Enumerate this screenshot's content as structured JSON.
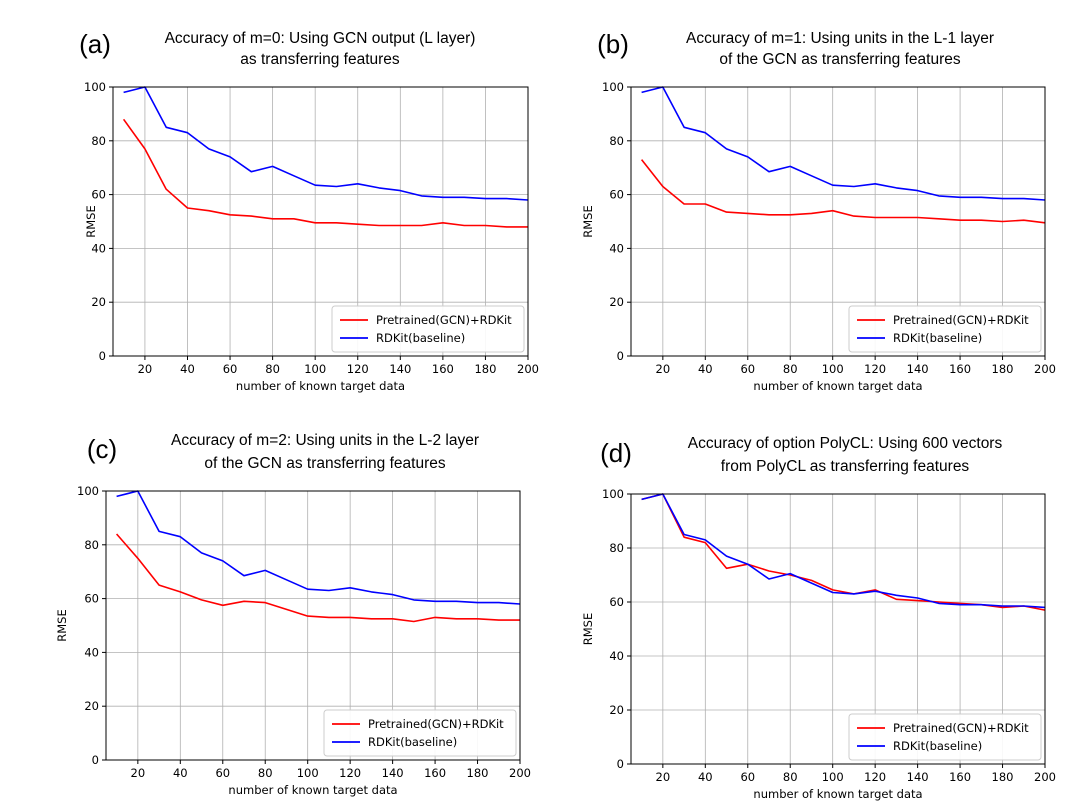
{
  "chart_data": [
    {
      "type": "line",
      "panel_label": "(a)",
      "title_lines": [
        "Accuracy of m=0: Using GCN output (L layer)",
        "as transferring features"
      ],
      "xlabel": "number of known target data",
      "ylabel": "RMSE",
      "xlim": [
        5,
        200
      ],
      "ylim": [
        0,
        100
      ],
      "xticks": [
        20,
        40,
        60,
        80,
        100,
        120,
        140,
        160,
        180,
        200
      ],
      "yticks": [
        0,
        20,
        40,
        60,
        80,
        100
      ],
      "grid": true,
      "legend_position": "lower right",
      "x": [
        10,
        20,
        30,
        40,
        50,
        60,
        70,
        80,
        90,
        100,
        110,
        120,
        130,
        140,
        150,
        160,
        170,
        180,
        190,
        200
      ],
      "series": [
        {
          "name": "Pretrained(GCN)+RDKit",
          "color": "#ff0000",
          "values": [
            88,
            77,
            62,
            55,
            54,
            52.5,
            52,
            51,
            51,
            49.5,
            49.5,
            49,
            48.5,
            48.5,
            48.5,
            49.5,
            48.5,
            48.5,
            48,
            48
          ]
        },
        {
          "name": "RDKit(baseline)",
          "color": "#0000ff",
          "values": [
            98,
            100,
            85,
            83,
            77,
            74,
            68.5,
            70.5,
            67,
            63.5,
            63,
            64,
            62.5,
            61.5,
            59.5,
            59,
            59,
            58.5,
            58.5,
            58
          ]
        }
      ]
    },
    {
      "type": "line",
      "panel_label": "(b)",
      "title_lines": [
        "Accuracy of m=1: Using units in the L-1 layer",
        "of the GCN as transferring features"
      ],
      "xlabel": "number of known target data",
      "ylabel": "RMSE",
      "xlim": [
        5,
        200
      ],
      "ylim": [
        0,
        100
      ],
      "xticks": [
        20,
        40,
        60,
        80,
        100,
        120,
        140,
        160,
        180,
        200
      ],
      "yticks": [
        0,
        20,
        40,
        60,
        80,
        100
      ],
      "grid": true,
      "legend_position": "lower right",
      "x": [
        10,
        20,
        30,
        40,
        50,
        60,
        70,
        80,
        90,
        100,
        110,
        120,
        130,
        140,
        150,
        160,
        170,
        180,
        190,
        200
      ],
      "series": [
        {
          "name": "Pretrained(GCN)+RDKit",
          "color": "#ff0000",
          "values": [
            73,
            63,
            56.5,
            56.5,
            53.5,
            53,
            52.5,
            52.5,
            53,
            54,
            52,
            51.5,
            51.5,
            51.5,
            51,
            50.5,
            50.5,
            50,
            50.5,
            49.5
          ]
        },
        {
          "name": "RDKit(baseline)",
          "color": "#0000ff",
          "values": [
            98,
            100,
            85,
            83,
            77,
            74,
            68.5,
            70.5,
            67,
            63.5,
            63,
            64,
            62.5,
            61.5,
            59.5,
            59,
            59,
            58.5,
            58.5,
            58
          ]
        }
      ]
    },
    {
      "type": "line",
      "panel_label": "(c)",
      "title_lines": [
        "Accuracy of m=2: Using units in the L-2 layer",
        "of the GCN as transferring features"
      ],
      "xlabel": "number of known target data",
      "ylabel": "RMSE",
      "xlim": [
        5,
        200
      ],
      "ylim": [
        0,
        100
      ],
      "xticks": [
        20,
        40,
        60,
        80,
        100,
        120,
        140,
        160,
        180,
        200
      ],
      "yticks": [
        0,
        20,
        40,
        60,
        80,
        100
      ],
      "grid": true,
      "legend_position": "lower right",
      "x": [
        10,
        20,
        30,
        40,
        50,
        60,
        70,
        80,
        90,
        100,
        110,
        120,
        130,
        140,
        150,
        160,
        170,
        180,
        190,
        200
      ],
      "series": [
        {
          "name": "Pretrained(GCN)+RDKit",
          "color": "#ff0000",
          "values": [
            84,
            75,
            65,
            62.5,
            59.5,
            57.5,
            59,
            58.5,
            56,
            53.5,
            53,
            53,
            52.5,
            52.5,
            51.5,
            53,
            52.5,
            52.5,
            52,
            52
          ]
        },
        {
          "name": "RDKit(baseline)",
          "color": "#0000ff",
          "values": [
            98,
            100,
            85,
            83,
            77,
            74,
            68.5,
            70.5,
            67,
            63.5,
            63,
            64,
            62.5,
            61.5,
            59.5,
            59,
            59,
            58.5,
            58.5,
            58
          ]
        }
      ]
    },
    {
      "type": "line",
      "panel_label": "(d)",
      "title_lines": [
        "Accuracy of option PolyCL: Using 600 vectors",
        "from PolyCL as transferring features"
      ],
      "xlabel": "number of known target data",
      "ylabel": "RMSE",
      "xlim": [
        5,
        200
      ],
      "ylim": [
        0,
        100
      ],
      "xticks": [
        20,
        40,
        60,
        80,
        100,
        120,
        140,
        160,
        180,
        200
      ],
      "yticks": [
        0,
        20,
        40,
        60,
        80,
        100
      ],
      "grid": true,
      "legend_position": "lower right",
      "x": [
        10,
        20,
        30,
        40,
        50,
        60,
        70,
        80,
        90,
        100,
        110,
        120,
        130,
        140,
        150,
        160,
        170,
        180,
        190,
        200
      ],
      "series": [
        {
          "name": "Pretrained(GCN)+RDKit",
          "color": "#ff0000",
          "values": [
            98,
            100,
            84,
            82,
            72.5,
            74,
            71.5,
            70,
            68,
            64.5,
            63,
            64.5,
            61,
            60.5,
            60,
            59.5,
            59,
            58,
            58.5,
            57
          ]
        },
        {
          "name": "RDKit(baseline)",
          "color": "#0000ff",
          "values": [
            98,
            100,
            85,
            83,
            77,
            74,
            68.5,
            70.5,
            67,
            63.5,
            63,
            64,
            62.5,
            61.5,
            59.5,
            59,
            59,
            58.5,
            58.5,
            58
          ]
        }
      ]
    }
  ]
}
